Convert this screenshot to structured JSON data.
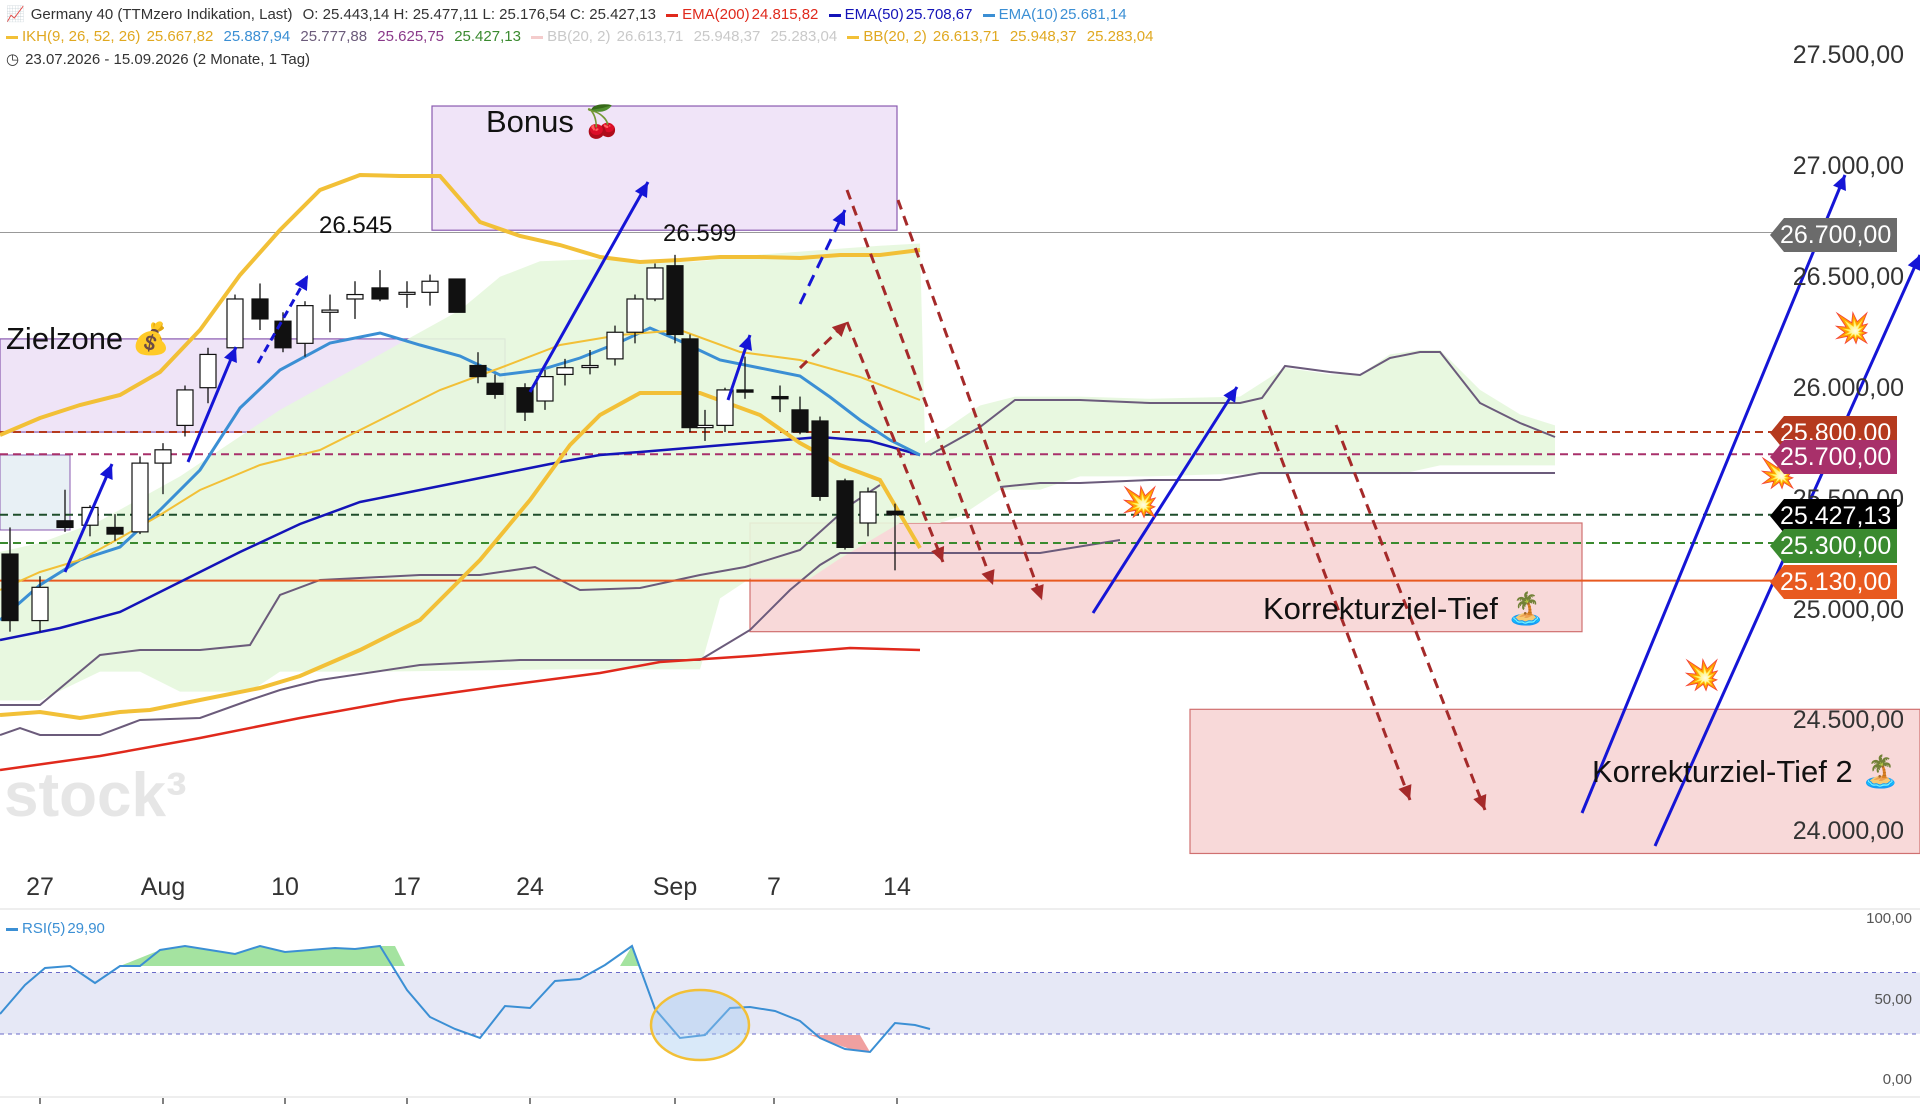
{
  "header": {
    "line1": {
      "title": "Germany 40 (TTMzero Indikation, Last)",
      "ohlc": "O: 25.443,14  H: 25.477,11  L: 25.176,54  C: 25.427,13",
      "ema200": "EMA(200)",
      "ema200_val": "24.815,82",
      "ema50": "EMA(50)",
      "ema50_val": "25.708,67",
      "ema10": "EMA(10)",
      "ema10_val": "25.681,14"
    },
    "line2": {
      "ikh": "IKH(9, 26, 52, 26)",
      "ikh_v1": "25.667,82",
      "ikh_v2": "25.887,94",
      "ikh_v3": "25.777,88",
      "ikh_v4": "25.625,75",
      "ikh_v5": "25.427,13",
      "bb_grey": "BB(20, 2)",
      "bb_grey_v1": "26.613,71",
      "bb_grey_v2": "25.948,37",
      "bb_grey_v3": "25.283,04",
      "bb": "BB(20, 2)",
      "bb_v1": "26.613,71",
      "bb_v2": "25.948,37",
      "bb_v3": "25.283,04"
    },
    "line3": "23.07.2026 - 15.09.2026  (2 Monate, 1 Tag)"
  },
  "colors": {
    "ema200": "#e0291c",
    "ema50": "#1414b8",
    "ema10": "#3b8fd4",
    "bb": "#f2c037",
    "cloud": "#e6f7dd",
    "cloud_line": "#6b5b7b",
    "arrow_up": "#1515d6",
    "arrow_down": "#a52a2a",
    "tag_26700": "#6b6b6b",
    "tag_25800": "#b53a1e",
    "tag_25700": "#a8306a",
    "tag_last": "#000000",
    "tag_25300": "#3a8a2f",
    "tag_25130": "#e85a20"
  },
  "price_axis": [
    "27.500,00",
    "27.000,00",
    "26.500,00",
    "26.000,00",
    "25.500,00",
    "25.000,00",
    "24.500,00",
    "24.000,00"
  ],
  "price_tags": {
    "t26700": "26.700,00",
    "t25800": "25.800,00",
    "t25700": "25.700,00",
    "tlast": "25.427,13",
    "t25300": "25.300,00",
    "t25130": "25.130,00"
  },
  "x_axis": [
    "27",
    "Aug",
    "10",
    "17",
    "24",
    "Sep",
    "7",
    "14"
  ],
  "annotations": {
    "zielzone": "Zielzone 💰",
    "bonus": "Bonus 🍒",
    "hi1": "26.545",
    "hi2": "26.599",
    "korrektur1": "Korrekturziel-Tief 🏝️",
    "korrektur2": "Korrekturziel-Tief 2 🏝️",
    "watermark": "stock³"
  },
  "rsi": {
    "label": "RSI(5)",
    "value": "29,90",
    "axis": [
      "100,00",
      "50,00",
      "0,00"
    ]
  },
  "chart_data": {
    "type": "candlestick",
    "instrument": "Germany 40",
    "ylim": [
      23700,
      27700
    ],
    "candles": [
      {
        "d": "23.07",
        "o": 25250,
        "h": 25370,
        "l": 24900,
        "c": 24950
      },
      {
        "d": "24.07",
        "o": 24950,
        "h": 25150,
        "l": 24900,
        "c": 25100
      },
      {
        "d": "27.07",
        "o": 25400,
        "h": 25540,
        "l": 25350,
        "c": 25370
      },
      {
        "d": "28.07",
        "o": 25380,
        "h": 25470,
        "l": 25330,
        "c": 25460
      },
      {
        "d": "29.07",
        "o": 25370,
        "h": 25430,
        "l": 25310,
        "c": 25340
      },
      {
        "d": "30.07",
        "o": 25350,
        "h": 25690,
        "l": 25340,
        "c": 25660
      },
      {
        "d": "31.07",
        "o": 25660,
        "h": 25750,
        "l": 25520,
        "c": 25720
      },
      {
        "d": "03.08",
        "o": 25830,
        "h": 26010,
        "l": 25780,
        "c": 25990
      },
      {
        "d": "04.08",
        "o": 26000,
        "h": 26180,
        "l": 25930,
        "c": 26150
      },
      {
        "d": "05.08",
        "o": 26180,
        "h": 26420,
        "l": 26130,
        "c": 26400
      },
      {
        "d": "06.08",
        "o": 26400,
        "h": 26470,
        "l": 26260,
        "c": 26310
      },
      {
        "d": "07.08",
        "o": 26300,
        "h": 26340,
        "l": 26160,
        "c": 26180
      },
      {
        "d": "10.08",
        "o": 26200,
        "h": 26390,
        "l": 26140,
        "c": 26370
      },
      {
        "d": "11.08",
        "o": 26340,
        "h": 26420,
        "l": 26250,
        "c": 26350
      },
      {
        "d": "12.08",
        "o": 26400,
        "h": 26480,
        "l": 26310,
        "c": 26420
      },
      {
        "d": "13.08",
        "o": 26450,
        "h": 26530,
        "l": 26390,
        "c": 26400
      },
      {
        "d": "14.08",
        "o": 26430,
        "h": 26480,
        "l": 26360,
        "c": 26430
      },
      {
        "d": "17.08",
        "o": 26430,
        "h": 26510,
        "l": 26370,
        "c": 26480
      },
      {
        "d": "18.08",
        "o": 26490,
        "h": 26490,
        "l": 26340,
        "c": 26340
      },
      {
        "d": "19.08",
        "o": 26100,
        "h": 26160,
        "l": 26020,
        "c": 26050
      },
      {
        "d": "20.08",
        "o": 26020,
        "h": 26060,
        "l": 25950,
        "c": 25970
      },
      {
        "d": "21.08",
        "o": 26000,
        "h": 26020,
        "l": 25850,
        "c": 25890
      },
      {
        "d": "24.08",
        "o": 25940,
        "h": 26080,
        "l": 25900,
        "c": 26050
      },
      {
        "d": "25.08",
        "o": 26060,
        "h": 26130,
        "l": 26010,
        "c": 26090
      },
      {
        "d": "26.08",
        "o": 26100,
        "h": 26170,
        "l": 26060,
        "c": 26100
      },
      {
        "d": "27.08",
        "o": 26130,
        "h": 26280,
        "l": 26100,
        "c": 26250
      },
      {
        "d": "28.08",
        "o": 26250,
        "h": 26420,
        "l": 26200,
        "c": 26400
      },
      {
        "d": "31.08",
        "o": 26400,
        "h": 26560,
        "l": 26390,
        "c": 26540
      },
      {
        "d": "01.09",
        "o": 26550,
        "h": 26599,
        "l": 26200,
        "c": 26240
      },
      {
        "d": "02.09",
        "o": 26220,
        "h": 26240,
        "l": 25800,
        "c": 25820
      },
      {
        "d": "03.09",
        "o": 25820,
        "h": 25900,
        "l": 25760,
        "c": 25830
      },
      {
        "d": "04.09",
        "o": 25830,
        "h": 26000,
        "l": 25800,
        "c": 25990
      },
      {
        "d": "07.09",
        "o": 25990,
        "h": 26140,
        "l": 25950,
        "c": 25980
      },
      {
        "d": "08.09",
        "o": 25960,
        "h": 26010,
        "l": 25890,
        "c": 25950
      },
      {
        "d": "09.09",
        "o": 25900,
        "h": 25960,
        "l": 25790,
        "c": 25800
      },
      {
        "d": "10.09",
        "o": 25850,
        "h": 25870,
        "l": 25490,
        "c": 25510
      },
      {
        "d": "11.09",
        "o": 25580,
        "h": 25590,
        "l": 25270,
        "c": 25280
      },
      {
        "d": "14.09",
        "o": 25390,
        "h": 25550,
        "l": 25330,
        "c": 25530
      },
      {
        "d": "15.09",
        "o": 25443.14,
        "h": 25477.11,
        "l": 25176.54,
        "c": 25427.13
      }
    ],
    "horizontal_levels": [
      26700,
      25800,
      25700,
      25427.13,
      25300,
      25130
    ],
    "zones": [
      {
        "name": "Zielzone",
        "from": 25800,
        "to": 26220
      },
      {
        "name": "Bonus",
        "from": 26710,
        "to": 27270
      },
      {
        "name": "Korrekturziel-Tief",
        "from": 24900,
        "to": 25390
      },
      {
        "name": "Korrekturziel-Tief 2",
        "from": 23900,
        "to": 24550
      }
    ],
    "rsi_ylim": [
      0,
      100
    ],
    "rsi_bands": [
      30,
      70
    ],
    "rsi_last": 29.9
  }
}
